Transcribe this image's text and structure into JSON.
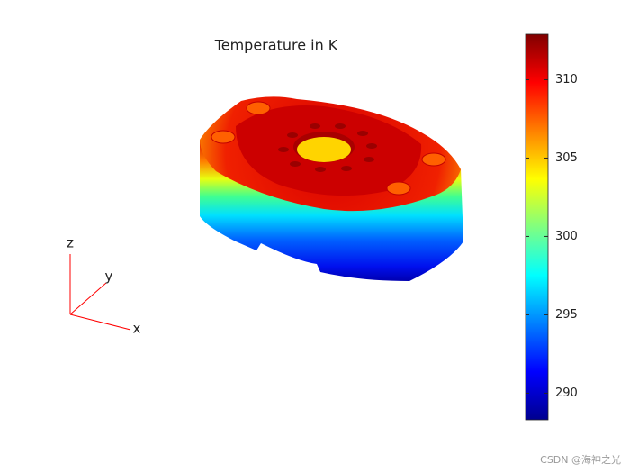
{
  "chart_data": {
    "type": "surface",
    "title": "Temperature in K",
    "colorbar": {
      "lim": [
        288.3,
        312.9
      ],
      "ticks": [
        290,
        295,
        300,
        305,
        310
      ],
      "colormap": "jet"
    },
    "axis_labels": {
      "x": "x",
      "y": "y",
      "z": "z"
    },
    "triad_color": "#ff0000"
  },
  "watermark": "CSDN @海神之光"
}
